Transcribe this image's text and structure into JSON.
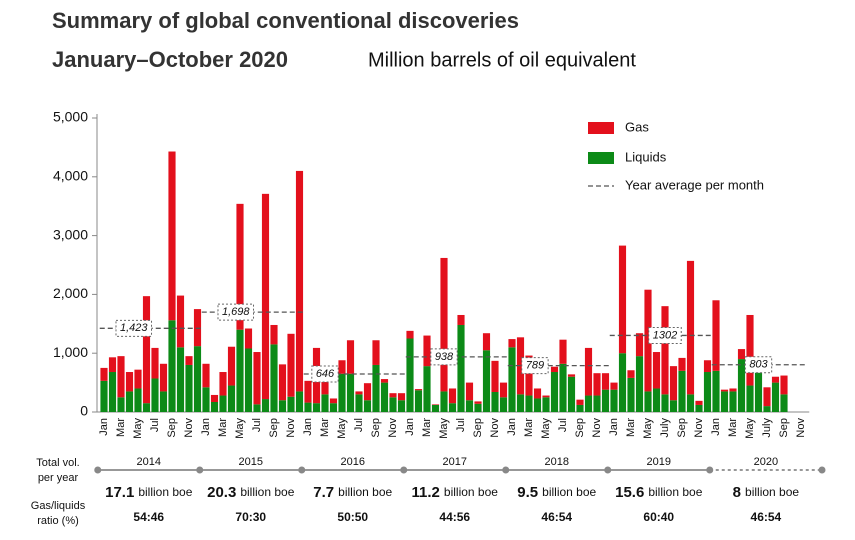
{
  "chart_data": {
    "type": "stacked_bar",
    "title": "Summary of global conventional discoveries",
    "subtitle_bold": "January–October 2020",
    "subtitle": "Million barrels of oil equivalent",
    "categories": [
      "Jan",
      null,
      "Mar",
      null,
      "May",
      null,
      "Jul",
      null,
      "Sep",
      null,
      "Nov",
      null,
      "Jan",
      null,
      "Mar",
      null,
      "May",
      null,
      "Jul",
      null,
      "Sep",
      null,
      "Nov",
      null,
      "Jan",
      null,
      "Mar",
      null,
      "May",
      null,
      "Jul",
      null,
      "Sep",
      null,
      "Nov",
      null,
      "Jan",
      null,
      "Mar",
      null,
      "May",
      null,
      "Jul",
      null,
      "Sep",
      null,
      "Nov",
      null,
      "Jan",
      null,
      "Mar",
      null,
      "May",
      null,
      "Jul",
      null,
      "Sep",
      null,
      "Nov",
      null,
      "Jan",
      null,
      "Mar",
      null,
      "May",
      null,
      "July",
      null,
      "Sep",
      null,
      "Nov",
      null,
      "Jan",
      null,
      "Mar",
      null,
      "May",
      null,
      "July",
      null,
      "Sep",
      null,
      "Nov"
    ],
    "series": [
      {
        "name": "Liquids",
        "color": "#0c8a17",
        "values": [
          530,
          680,
          250,
          350,
          400,
          150,
          570,
          350,
          1560,
          1100,
          800,
          1120,
          420,
          170,
          280,
          450,
          1400,
          1080,
          130,
          220,
          1150,
          200,
          260,
          350,
          160,
          150,
          300,
          150,
          650,
          650,
          300,
          200,
          800,
          500,
          250,
          200,
          1250,
          370,
          780,
          120,
          350,
          150,
          1480,
          200,
          140,
          1050,
          340,
          250,
          1100,
          300,
          280,
          230,
          250,
          680,
          820,
          600,
          120,
          280,
          280,
          380,
          380,
          1000,
          580,
          950,
          350,
          400,
          300,
          200,
          700,
          300,
          120,
          680,
          700,
          350,
          350,
          900,
          450,
          830,
          100,
          500,
          300,
          null,
          null
        ]
      },
      {
        "name": "Gas",
        "color": "#e3101c",
        "values": [
          220,
          250,
          700,
          330,
          320,
          1820,
          520,
          470,
          2870,
          880,
          150,
          630,
          400,
          120,
          400,
          660,
          2140,
          340,
          890,
          3490,
          330,
          610,
          1070,
          3750,
          370,
          940,
          260,
          80,
          230,
          570,
          50,
          290,
          420,
          60,
          70,
          120,
          130,
          20,
          520,
          10,
          2270,
          250,
          170,
          300,
          40,
          290,
          530,
          250,
          140,
          970,
          680,
          170,
          30,
          90,
          410,
          40,
          90,
          810,
          380,
          280,
          120,
          1830,
          130,
          390,
          1730,
          620,
          1500,
          580,
          220,
          2270,
          70,
          200,
          1200,
          30,
          50,
          170,
          1200,
          70,
          320,
          100,
          320,
          null,
          null
        ]
      }
    ],
    "legend_order": [
      "Gas",
      "Liquids"
    ],
    "average": {
      "name": "Year average per month",
      "values": [
        1423,
        1698,
        646,
        938,
        789,
        1302,
        803
      ],
      "value_labels": [
        "1,423",
        "1,698",
        "646",
        "938",
        "789",
        "1302",
        "803"
      ]
    },
    "ylim": [
      0,
      5000
    ],
    "yticks": [
      0,
      {
        "value": 1000,
        "label": "1,000"
      },
      {
        "value": 2000,
        "label": "2,000"
      },
      {
        "value": 3000,
        "label": "3,000"
      },
      {
        "value": 4000,
        "label": "4,000"
      },
      {
        "value": 5000,
        "label": "5,000"
      }
    ],
    "footer": {
      "total_label": [
        "Total vol.",
        "per year"
      ],
      "ratio_label": [
        "Gas/liquids",
        "ratio (%)"
      ],
      "years": [
        "2014",
        "2015",
        "2016",
        "2017",
        "2018",
        "2019",
        "2020"
      ],
      "totals": [
        17.1,
        20.3,
        7.7,
        11.2,
        9.5,
        15.6,
        8
      ],
      "total_unit": "billion boe",
      "ratios": [
        "54:46",
        "70:30",
        "50:50",
        "44:56",
        "46:54",
        "60:40",
        "46:54"
      ]
    }
  }
}
